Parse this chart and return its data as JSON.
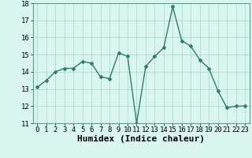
{
  "x": [
    0,
    1,
    2,
    3,
    4,
    5,
    6,
    7,
    8,
    9,
    10,
    11,
    12,
    13,
    14,
    15,
    16,
    17,
    18,
    19,
    20,
    21,
    22,
    23
  ],
  "y": [
    13.1,
    13.5,
    14.0,
    14.2,
    14.2,
    14.6,
    14.5,
    13.7,
    13.6,
    15.1,
    14.9,
    11.0,
    14.3,
    14.9,
    15.4,
    17.8,
    15.8,
    15.5,
    14.7,
    14.2,
    12.9,
    11.9,
    12.0,
    12.0
  ],
  "line_color": "#2e7d6e",
  "marker": "D",
  "marker_size": 2.0,
  "bg_color": "#d8f5f0",
  "grid_color": "#b5d8d0",
  "xlabel": "Humidex (Indice chaleur)",
  "ylim": [
    11,
    18
  ],
  "xlim": [
    -0.5,
    23.5
  ],
  "yticks": [
    11,
    12,
    13,
    14,
    15,
    16,
    17,
    18
  ],
  "xticks": [
    0,
    1,
    2,
    3,
    4,
    5,
    6,
    7,
    8,
    9,
    10,
    11,
    12,
    13,
    14,
    15,
    16,
    17,
    18,
    19,
    20,
    21,
    22,
    23
  ],
  "tick_fontsize": 6.5,
  "xlabel_fontsize": 8.0,
  "linewidth": 1.0
}
